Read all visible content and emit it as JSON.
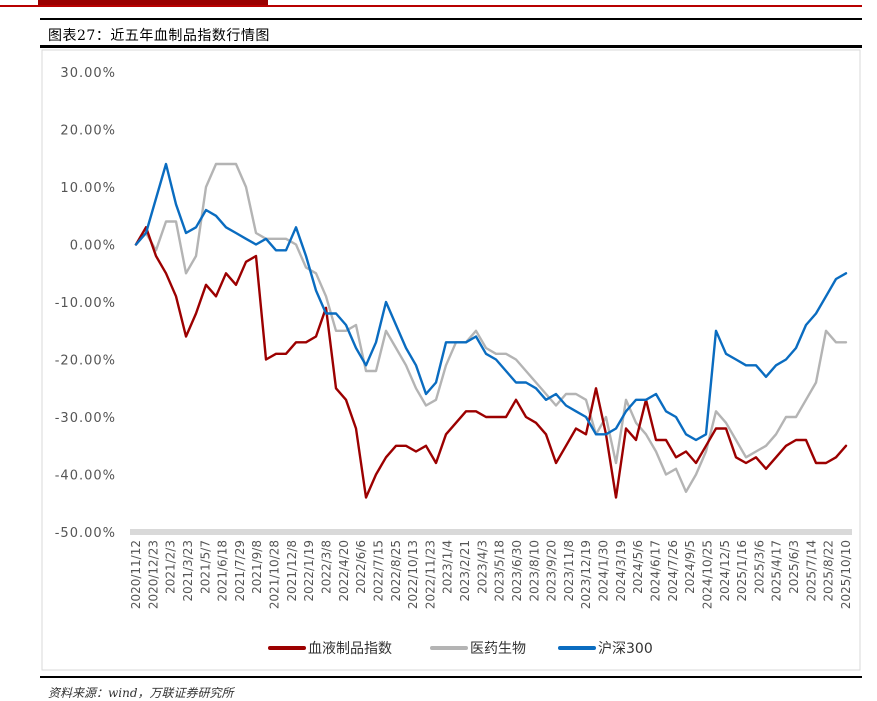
{
  "figure_title": "图表27：近五年血制品指数行情图",
  "source_text": "资料来源：wind，万联证券研究所",
  "colors": {
    "series_1": "#9c0000",
    "series_2": "#b4b4b4",
    "series_3": "#0a6cc0",
    "zero_band": "#d9d9d9",
    "banner": "#b80000"
  },
  "chart_data": {
    "type": "line",
    "title": "",
    "xlabel": "",
    "ylabel": "",
    "ylim": [
      -0.5,
      0.3
    ],
    "y_ticks": [
      "30.00%",
      "20.00%",
      "10.00%",
      "0.00%",
      "-10.00%",
      "-20.00%",
      "-30.00%",
      "-40.00%",
      "-50.00%"
    ],
    "x_tick_labels": [
      "2020/11/12",
      "2020/12/23",
      "2021/2/3",
      "2021/3/23",
      "2021/5/7",
      "2021/6/18",
      "2021/7/29",
      "2021/9/8",
      "2021/10/28",
      "2021/12/8",
      "2022/1/19",
      "2022/3/8",
      "2022/4/20",
      "2022/6/6",
      "2022/7/15",
      "2022/8/25",
      "2022/10/13",
      "2022/11/23",
      "2023/1/4",
      "2023/2/21",
      "2023/4/3",
      "2023/5/18",
      "2023/6/30",
      "2023/8/10",
      "2023/9/20",
      "2023/11/8",
      "2023/12/19",
      "2024/1/30",
      "2024/3/19",
      "2024/5/6",
      "2024/6/17",
      "2024/7/26",
      "2024/9/5",
      "2024/10/25",
      "2024/12/5",
      "2025/1/16",
      "2025/3/6",
      "2025/4/17",
      "2025/6/3",
      "2025/7/14",
      "2025/8/22",
      "2025/10/10"
    ],
    "legend_position": "bottom-center",
    "grid": false,
    "series": [
      {
        "name": "血液制品指数",
        "values": [
          0.0,
          0.03,
          -0.02,
          -0.05,
          -0.09,
          -0.16,
          -0.12,
          -0.07,
          -0.09,
          -0.05,
          -0.07,
          -0.03,
          -0.02,
          -0.2,
          -0.19,
          -0.19,
          -0.17,
          -0.17,
          -0.16,
          -0.11,
          -0.25,
          -0.27,
          -0.32,
          -0.44,
          -0.4,
          -0.37,
          -0.35,
          -0.35,
          -0.36,
          -0.35,
          -0.38,
          -0.33,
          -0.31,
          -0.29,
          -0.29,
          -0.3,
          -0.3,
          -0.3,
          -0.27,
          -0.3,
          -0.31,
          -0.33,
          -0.38,
          -0.35,
          -0.32,
          -0.33,
          -0.25,
          -0.33,
          -0.44,
          -0.32,
          -0.34,
          -0.27,
          -0.34,
          -0.34,
          -0.37,
          -0.36,
          -0.38,
          -0.35,
          -0.32,
          -0.32,
          -0.37,
          -0.38,
          -0.37,
          -0.39,
          -0.37,
          -0.35,
          -0.34,
          -0.34,
          -0.38,
          -0.38,
          -0.37,
          -0.35
        ]
      },
      {
        "name": "医药生物",
        "values": [
          0.0,
          0.02,
          -0.01,
          0.04,
          0.04,
          -0.05,
          -0.02,
          0.1,
          0.14,
          0.14,
          0.14,
          0.1,
          0.02,
          0.01,
          0.01,
          0.01,
          0.0,
          -0.04,
          -0.05,
          -0.09,
          -0.15,
          -0.15,
          -0.14,
          -0.22,
          -0.22,
          -0.15,
          -0.18,
          -0.21,
          -0.25,
          -0.28,
          -0.27,
          -0.21,
          -0.17,
          -0.17,
          -0.15,
          -0.18,
          -0.19,
          -0.19,
          -0.2,
          -0.22,
          -0.24,
          -0.26,
          -0.28,
          -0.26,
          -0.26,
          -0.27,
          -0.33,
          -0.3,
          -0.38,
          -0.27,
          -0.31,
          -0.33,
          -0.36,
          -0.4,
          -0.39,
          -0.43,
          -0.4,
          -0.36,
          -0.29,
          -0.31,
          -0.34,
          -0.37,
          -0.36,
          -0.35,
          -0.33,
          -0.3,
          -0.3,
          -0.27,
          -0.24,
          -0.15,
          -0.17,
          -0.17
        ]
      },
      {
        "name": "沪深300",
        "values": [
          0.0,
          0.02,
          0.08,
          0.14,
          0.07,
          0.02,
          0.03,
          0.06,
          0.05,
          0.03,
          0.02,
          0.01,
          0.0,
          0.01,
          -0.01,
          -0.01,
          0.03,
          -0.02,
          -0.08,
          -0.12,
          -0.12,
          -0.14,
          -0.18,
          -0.21,
          -0.17,
          -0.1,
          -0.14,
          -0.18,
          -0.21,
          -0.26,
          -0.24,
          -0.17,
          -0.17,
          -0.17,
          -0.16,
          -0.19,
          -0.2,
          -0.22,
          -0.24,
          -0.24,
          -0.25,
          -0.27,
          -0.26,
          -0.28,
          -0.29,
          -0.3,
          -0.33,
          -0.33,
          -0.32,
          -0.29,
          -0.27,
          -0.27,
          -0.26,
          -0.29,
          -0.3,
          -0.33,
          -0.34,
          -0.33,
          -0.15,
          -0.19,
          -0.2,
          -0.21,
          -0.21,
          -0.23,
          -0.21,
          -0.2,
          -0.18,
          -0.14,
          -0.12,
          -0.09,
          -0.06,
          -0.05
        ]
      }
    ]
  }
}
